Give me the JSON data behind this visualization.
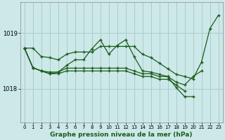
{
  "background_color": "#cce8e8",
  "plot_bg_color": "#cce8e8",
  "grid_color": "#aacccc",
  "line_color": "#1a5c1a",
  "marker_color": "#1a5c1a",
  "xlabel": "Graphe pression niveau de la mer (hPa)",
  "xlim": [
    -0.5,
    23.5
  ],
  "ylim": [
    1017.4,
    1019.55
  ],
  "yticks": [
    1018,
    1019
  ],
  "xticks": [
    0,
    1,
    2,
    3,
    4,
    5,
    6,
    7,
    8,
    9,
    10,
    11,
    12,
    13,
    14,
    15,
    16,
    17,
    18,
    19,
    20,
    21,
    22,
    23
  ],
  "series": [
    [
      1018.73,
      1018.73,
      1018.58,
      1018.56,
      1018.52,
      1018.62,
      1018.66,
      1018.66,
      1018.66,
      1018.76,
      1018.76,
      1018.76,
      1018.76,
      1018.76,
      1018.62,
      1018.56,
      1018.46,
      1018.36,
      1018.26,
      1018.22,
      1018.18,
      1018.48,
      1019.08,
      1019.32
    ],
    [
      1018.73,
      1018.38,
      1018.32,
      1018.3,
      1018.3,
      1018.42,
      1018.52,
      1018.52,
      1018.72,
      1018.88,
      1018.62,
      1018.78,
      1018.88,
      1018.58,
      1018.32,
      1018.3,
      1018.26,
      1018.22,
      1018.02,
      1017.86,
      1017.86,
      null,
      null,
      null
    ],
    [
      1018.73,
      1018.38,
      1018.32,
      1018.27,
      1018.3,
      1018.37,
      1018.37,
      1018.37,
      1018.37,
      1018.37,
      1018.37,
      1018.37,
      1018.37,
      1018.32,
      1018.27,
      1018.27,
      1018.22,
      1018.22,
      1018.12,
      1018.07,
      1018.22,
      1018.32,
      null,
      null
    ],
    [
      1018.73,
      1018.38,
      1018.32,
      1018.27,
      1018.27,
      1018.32,
      1018.32,
      1018.32,
      1018.32,
      1018.32,
      1018.32,
      1018.32,
      1018.32,
      1018.27,
      1018.22,
      1018.22,
      1018.17,
      1018.17,
      1018.07,
      1017.96,
      null,
      null,
      null,
      null
    ]
  ]
}
